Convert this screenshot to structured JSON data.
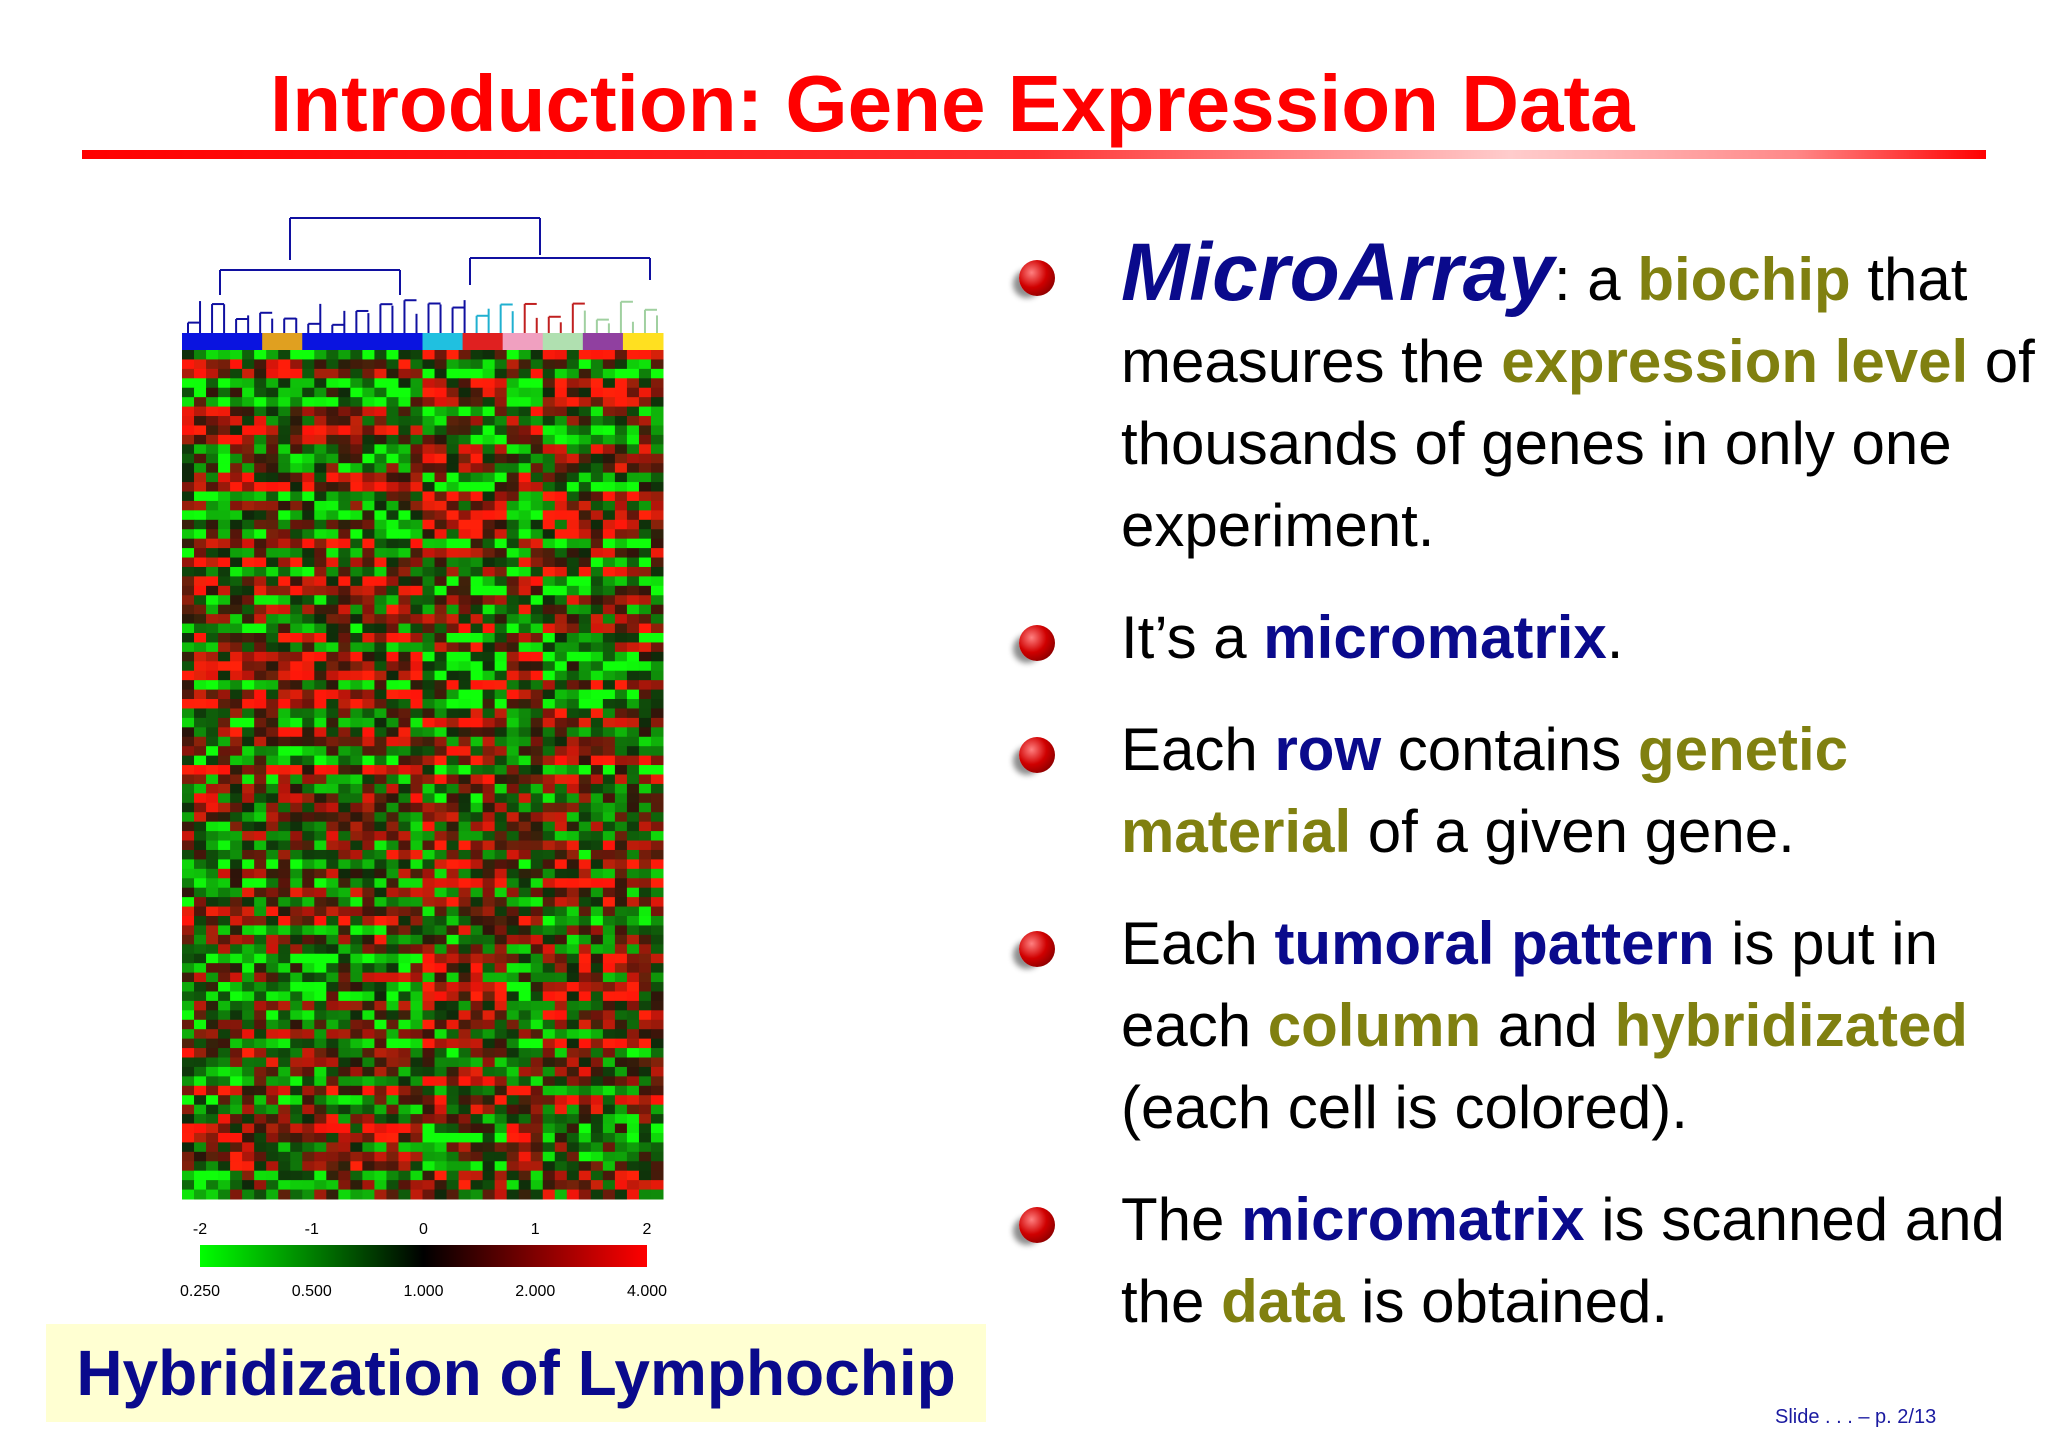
{
  "title": "Introduction: Gene Expression Data",
  "figure": {
    "scale_top": [
      "-2",
      "-1",
      "0",
      "1",
      "2"
    ],
    "scale_bottom": [
      "0.250",
      "0.500",
      "1.000",
      "2.000",
      "4.000"
    ],
    "caption": "Hybridization of Lymphochip"
  },
  "bullets": [
    {
      "segments": [
        {
          "text": "MicroArray",
          "color": "#0a0a8c",
          "bold": true,
          "italic": true,
          "big": true
        },
        {
          "text": ": a "
        },
        {
          "text": "biochip",
          "color": "#808010",
          "bold": true
        },
        {
          "text": " that measures the "
        },
        {
          "text": "expression level",
          "color": "#808010",
          "bold": true
        },
        {
          "text": " of thousands of genes in only one experiment."
        }
      ]
    },
    {
      "segments": [
        {
          "text": "It’s a "
        },
        {
          "text": "micromatrix",
          "color": "#0a0a8c",
          "bold": true
        },
        {
          "text": "."
        }
      ]
    },
    {
      "segments": [
        {
          "text": "Each "
        },
        {
          "text": "row",
          "color": "#0a0a8c",
          "bold": true
        },
        {
          "text": " contains "
        },
        {
          "text": "genetic material",
          "color": "#808010",
          "bold": true
        },
        {
          "text": " of a given gene."
        }
      ]
    },
    {
      "segments": [
        {
          "text": "Each "
        },
        {
          "text": "tumoral pattern",
          "color": "#0a0a8c",
          "bold": true
        },
        {
          "text": " is put in each "
        },
        {
          "text": "column",
          "color": "#808010",
          "bold": true
        },
        {
          "text": " and "
        },
        {
          "text": "hybridizated",
          "color": "#808010",
          "bold": true
        },
        {
          "text": " (each cell is colored)."
        }
      ]
    },
    {
      "segments": [
        {
          "text": "The "
        },
        {
          "text": "micromatrix",
          "color": "#0a0a8c",
          "bold": true
        },
        {
          "text": " is scanned and the "
        },
        {
          "text": "data",
          "color": "#808010",
          "bold": true
        },
        {
          "text": " is obtained."
        }
      ]
    }
  ],
  "footer": "Slide . . . – p. 2/13"
}
